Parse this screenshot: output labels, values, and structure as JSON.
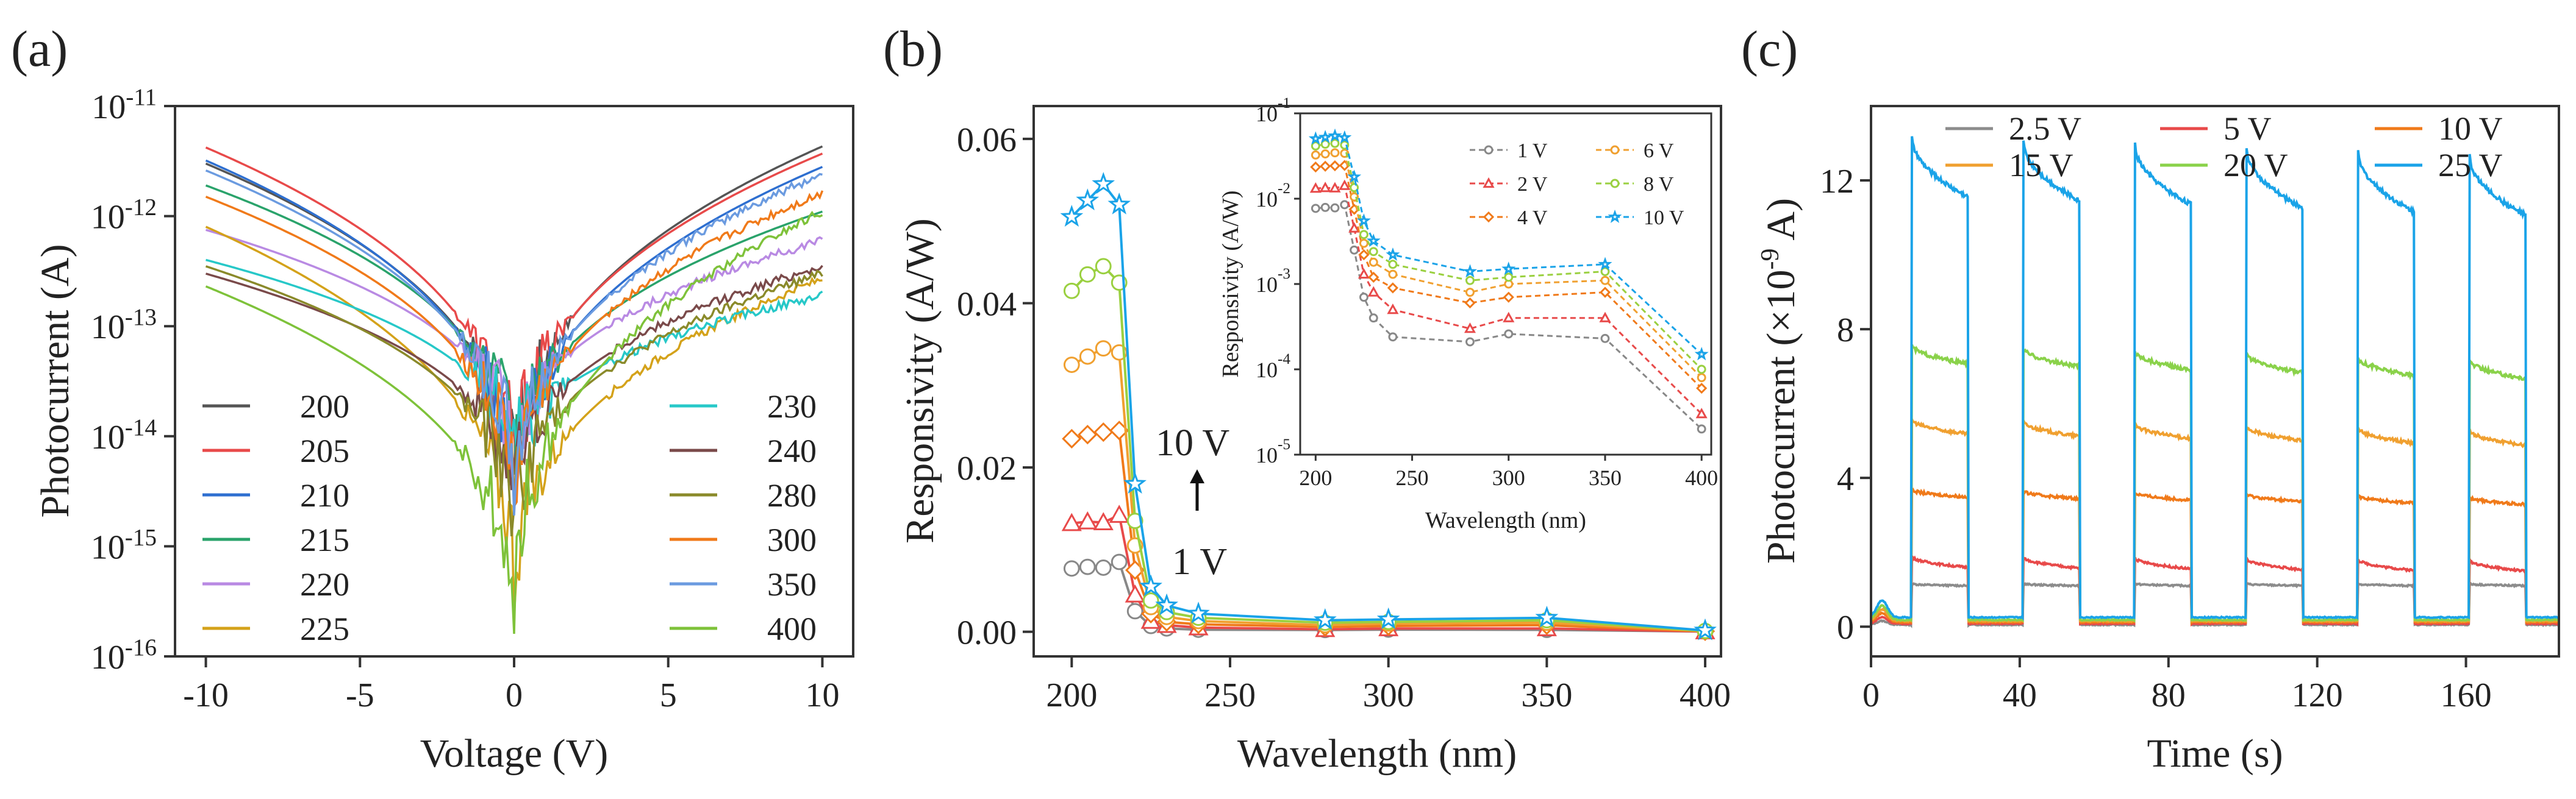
{
  "panels": {
    "a": {
      "label": "(a)"
    },
    "b": {
      "label": "(b)"
    },
    "c": {
      "label": "(c)"
    }
  },
  "chart_data": [
    {
      "id": "a",
      "type": "line",
      "title": "",
      "xlabel": "Voltage (V)",
      "ylabel": "Photocurrent (A)",
      "yscale": "log",
      "xlim": [
        -11,
        11
      ],
      "ylim_exp": [
        -16,
        -11
      ],
      "xticks": [
        -10,
        -5,
        0,
        5,
        10
      ],
      "xtick_labels": [
        "-10",
        "-5",
        "0",
        "5",
        "10"
      ],
      "yticks_exp": [
        -16,
        -15,
        -14,
        -13,
        -12,
        -11
      ],
      "ytick_labels": [
        {
          "base": "10",
          "exp": "-16"
        },
        {
          "base": "10",
          "exp": "-15"
        },
        {
          "base": "10",
          "exp": "-14"
        },
        {
          "base": "10",
          "exp": "-13"
        },
        {
          "base": "10",
          "exp": "-12"
        },
        {
          "base": "10",
          "exp": "-11"
        }
      ],
      "legend_position": "bottom-left and bottom-right",
      "series": [
        {
          "name": "200",
          "color": "#555555",
          "left": 3e-12,
          "right": 4.3e-12,
          "min": 1.2e-15
        },
        {
          "name": "205",
          "color": "#e84a4a",
          "left": 4.2e-12,
          "right": 3.7e-12,
          "min": 1.5e-15
        },
        {
          "name": "210",
          "color": "#2e6fd0",
          "left": 3.2e-12,
          "right": 2.8e-12,
          "min": 1e-15
        },
        {
          "name": "215",
          "color": "#2aa36b",
          "left": 1.9e-12,
          "right": 1.1e-12,
          "min": 2e-15
        },
        {
          "name": "220",
          "color": "#b98ae3",
          "left": 7.5e-13,
          "right": 6e-13,
          "min": 3e-15
        },
        {
          "name": "225",
          "color": "#d4a21a",
          "left": 8e-13,
          "right": 2.7e-13,
          "min": 2e-16
        },
        {
          "name": "230",
          "color": "#27c8c8",
          "left": 4e-13,
          "right": 1.9e-13,
          "min": 3e-15
        },
        {
          "name": "240",
          "color": "#7a4a4a",
          "left": 3e-13,
          "right": 3.5e-13,
          "min": 1.5e-15
        },
        {
          "name": "280",
          "color": "#8a8a2a",
          "left": 3.5e-13,
          "right": 3e-13,
          "min": 8e-16
        },
        {
          "name": "300",
          "color": "#f07a1a",
          "left": 1.5e-12,
          "right": 1.6e-12,
          "min": 1e-15
        },
        {
          "name": "350",
          "color": "#6b9be0",
          "left": 2.6e-12,
          "right": 2.4e-12,
          "min": 1.2e-15
        },
        {
          "name": "400",
          "color": "#7ec23a",
          "left": 2.3e-13,
          "right": 1.1e-12,
          "min": 1.2e-16
        }
      ]
    },
    {
      "id": "b",
      "type": "line",
      "title": "",
      "xlabel": "Wavelength (nm)",
      "ylabel": "Responsivity (A/W)",
      "xlim": [
        188,
        405
      ],
      "ylim": [
        -0.003,
        0.064
      ],
      "xticks": [
        200,
        250,
        300,
        350,
        400
      ],
      "xtick_labels": [
        "200",
        "250",
        "300",
        "350",
        "400"
      ],
      "yticks": [
        0.0,
        0.02,
        0.04,
        0.06
      ],
      "ytick_labels": [
        "0.00",
        "0.02",
        "0.04",
        "0.06"
      ],
      "x": [
        200,
        205,
        210,
        215,
        220,
        225,
        230,
        240,
        280,
        300,
        350,
        400
      ],
      "annotations": {
        "high": "10 V",
        "low": "1 V",
        "high_color": "#1aa3e8",
        "low_color": "#9a9a9a"
      },
      "series": [
        {
          "name": "1 V",
          "color": "#888888",
          "marker": "circle",
          "values": [
            0.0077,
            0.0079,
            0.0078,
            0.0085,
            0.0025,
            0.0007,
            0.0004,
            0.00024,
            0.00021,
            0.00026,
            0.00023,
            2e-05
          ]
        },
        {
          "name": "2 V",
          "color": "#e84a4a",
          "marker": "triangle",
          "values": [
            0.0132,
            0.0134,
            0.0133,
            0.0142,
            0.0045,
            0.0013,
            0.0008,
            0.0005,
            0.0003,
            0.0004,
            0.0004,
            3e-05
          ]
        },
        {
          "name": "4 V",
          "color": "#f07a1a",
          "marker": "diamond",
          "values": [
            0.0235,
            0.024,
            0.0243,
            0.0245,
            0.0075,
            0.0022,
            0.0012,
            0.0009,
            0.0006,
            0.0007,
            0.0008,
            6e-05
          ]
        },
        {
          "name": "6 V",
          "color": "#f0a030",
          "marker": "circle",
          "values": [
            0.0325,
            0.0335,
            0.0345,
            0.034,
            0.0105,
            0.003,
            0.0018,
            0.0013,
            0.0008,
            0.001,
            0.0011,
            8e-05
          ]
        },
        {
          "name": "8 V",
          "color": "#9ad040",
          "marker": "circle",
          "values": [
            0.0415,
            0.0435,
            0.0445,
            0.0425,
            0.0135,
            0.0038,
            0.0024,
            0.0017,
            0.0011,
            0.0012,
            0.0014,
            0.0001
          ]
        },
        {
          "name": "10 V",
          "color": "#1aa3e8",
          "marker": "star",
          "values": [
            0.0505,
            0.0525,
            0.0545,
            0.052,
            0.018,
            0.0055,
            0.0032,
            0.0022,
            0.0014,
            0.0015,
            0.0017,
            0.00015
          ]
        }
      ],
      "inset": {
        "type": "line",
        "yscale": "log",
        "xlabel": "Wavelength (nm)",
        "ylabel": "Responsivity (A/W)",
        "xlim": [
          192,
          405
        ],
        "ylim_exp": [
          -5,
          -1
        ],
        "xticks": [
          200,
          250,
          300,
          350,
          400
        ],
        "xtick_labels": [
          "200",
          "250",
          "300",
          "350",
          "400"
        ],
        "yticks_exp": [
          -5,
          -4,
          -3,
          -2,
          -1
        ],
        "ytick_labels": [
          {
            "base": "10",
            "exp": "-5"
          },
          {
            "base": "10",
            "exp": "-4"
          },
          {
            "base": "10",
            "exp": "-3"
          },
          {
            "base": "10",
            "exp": "-2"
          },
          {
            "base": "10",
            "exp": "-1"
          }
        ],
        "legend_position": "top-right",
        "legend_order": [
          "1 V",
          "6 V",
          "2 V",
          "8 V",
          "4 V",
          "10 V"
        ]
      }
    },
    {
      "id": "c",
      "type": "line",
      "title": "",
      "xlabel": "Time (s)",
      "ylabel": "Photocurrent (×10",
      "ylabel_exp": "-9",
      "ylabel_tail": " A)",
      "xlim": [
        0,
        185
      ],
      "ylim": [
        -0.8,
        14.0
      ],
      "xticks": [
        0,
        40,
        80,
        120,
        160
      ],
      "xtick_labels": [
        "0",
        "40",
        "80",
        "120",
        "160"
      ],
      "yticks": [
        0,
        4,
        8,
        12
      ],
      "ytick_labels": [
        "0",
        "4",
        "8",
        "12"
      ],
      "on_intervals": [
        [
          11,
          26
        ],
        [
          41,
          56
        ],
        [
          71,
          86
        ],
        [
          101,
          116
        ],
        [
          131,
          146
        ],
        [
          161,
          176
        ]
      ],
      "series": [
        {
          "name": "2.5 V",
          "color": "#8c8c8c",
          "peak": 1.15,
          "decay": 0.05,
          "dark": 0.05
        },
        {
          "name": "5 V",
          "color": "#e84a4a",
          "peak": 1.9,
          "decay": 0.3,
          "dark": 0.08
        },
        {
          "name": "10 V",
          "color": "#f07a1a",
          "peak": 3.7,
          "decay": 0.2,
          "dark": 0.12
        },
        {
          "name": "15 V",
          "color": "#f0a030",
          "peak": 5.6,
          "decay": 0.4,
          "dark": 0.15
        },
        {
          "name": "20 V",
          "color": "#8ad24a",
          "peak": 7.6,
          "decay": 0.5,
          "dark": 0.18
        },
        {
          "name": "25 V",
          "color": "#1aa3e8",
          "peak": 13.2,
          "decay": 1.6,
          "dark": 0.25
        }
      ]
    }
  ]
}
